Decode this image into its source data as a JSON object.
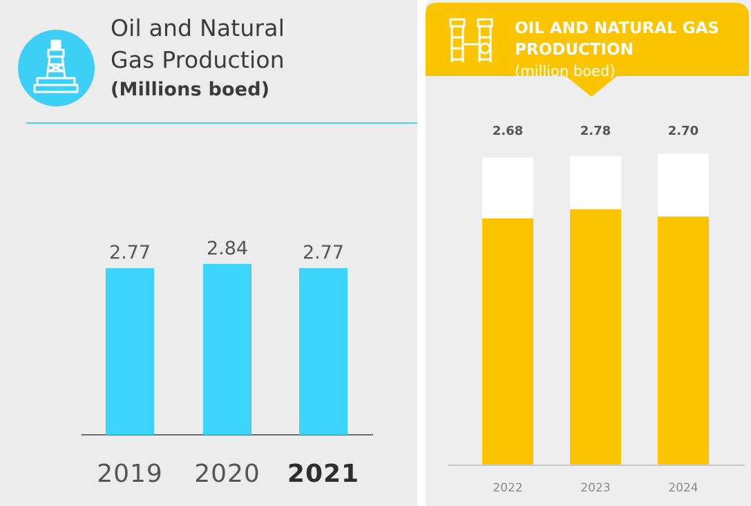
{
  "colors": {
    "left_bar": "#3dd4fb",
    "left_accent": "#4fd0f3",
    "right_bar": "#fcc400",
    "right_cap": "#ffffff",
    "right_banner": "#fbc400"
  },
  "left": {
    "icon": "oil-rig-icon",
    "title_line1": "Oil and Natural",
    "title_line2": "Gas Production",
    "subtitle": "(Millions boed)"
  },
  "right": {
    "icon": "gas-plant-icon",
    "title_line1": "OIL AND NATURAL GAS",
    "title_line2": "PRODUCTION",
    "unit": "(million boed)"
  },
  "chart_data": [
    {
      "type": "bar",
      "title": "Oil and Natural Gas Production (Millions boed)",
      "categories": [
        "2019",
        "2020",
        "2021"
      ],
      "values": [
        2.77,
        2.84,
        2.77
      ],
      "labels": [
        "2.77",
        "2.84",
        "2.77"
      ],
      "highlight_category": "2021",
      "xlabel": "",
      "ylabel": "",
      "ylim": [
        0,
        2.93
      ]
    },
    {
      "type": "bar",
      "title": "OIL AND NATURAL GAS PRODUCTION (million boed)",
      "categories": [
        "2022",
        "2023",
        "2024"
      ],
      "values": [
        2.68,
        2.78,
        2.7
      ],
      "labels": [
        "2.68",
        "2.78",
        "2.70"
      ],
      "xlabel": "",
      "ylabel": "",
      "ylim": [
        0,
        3.4
      ]
    }
  ]
}
